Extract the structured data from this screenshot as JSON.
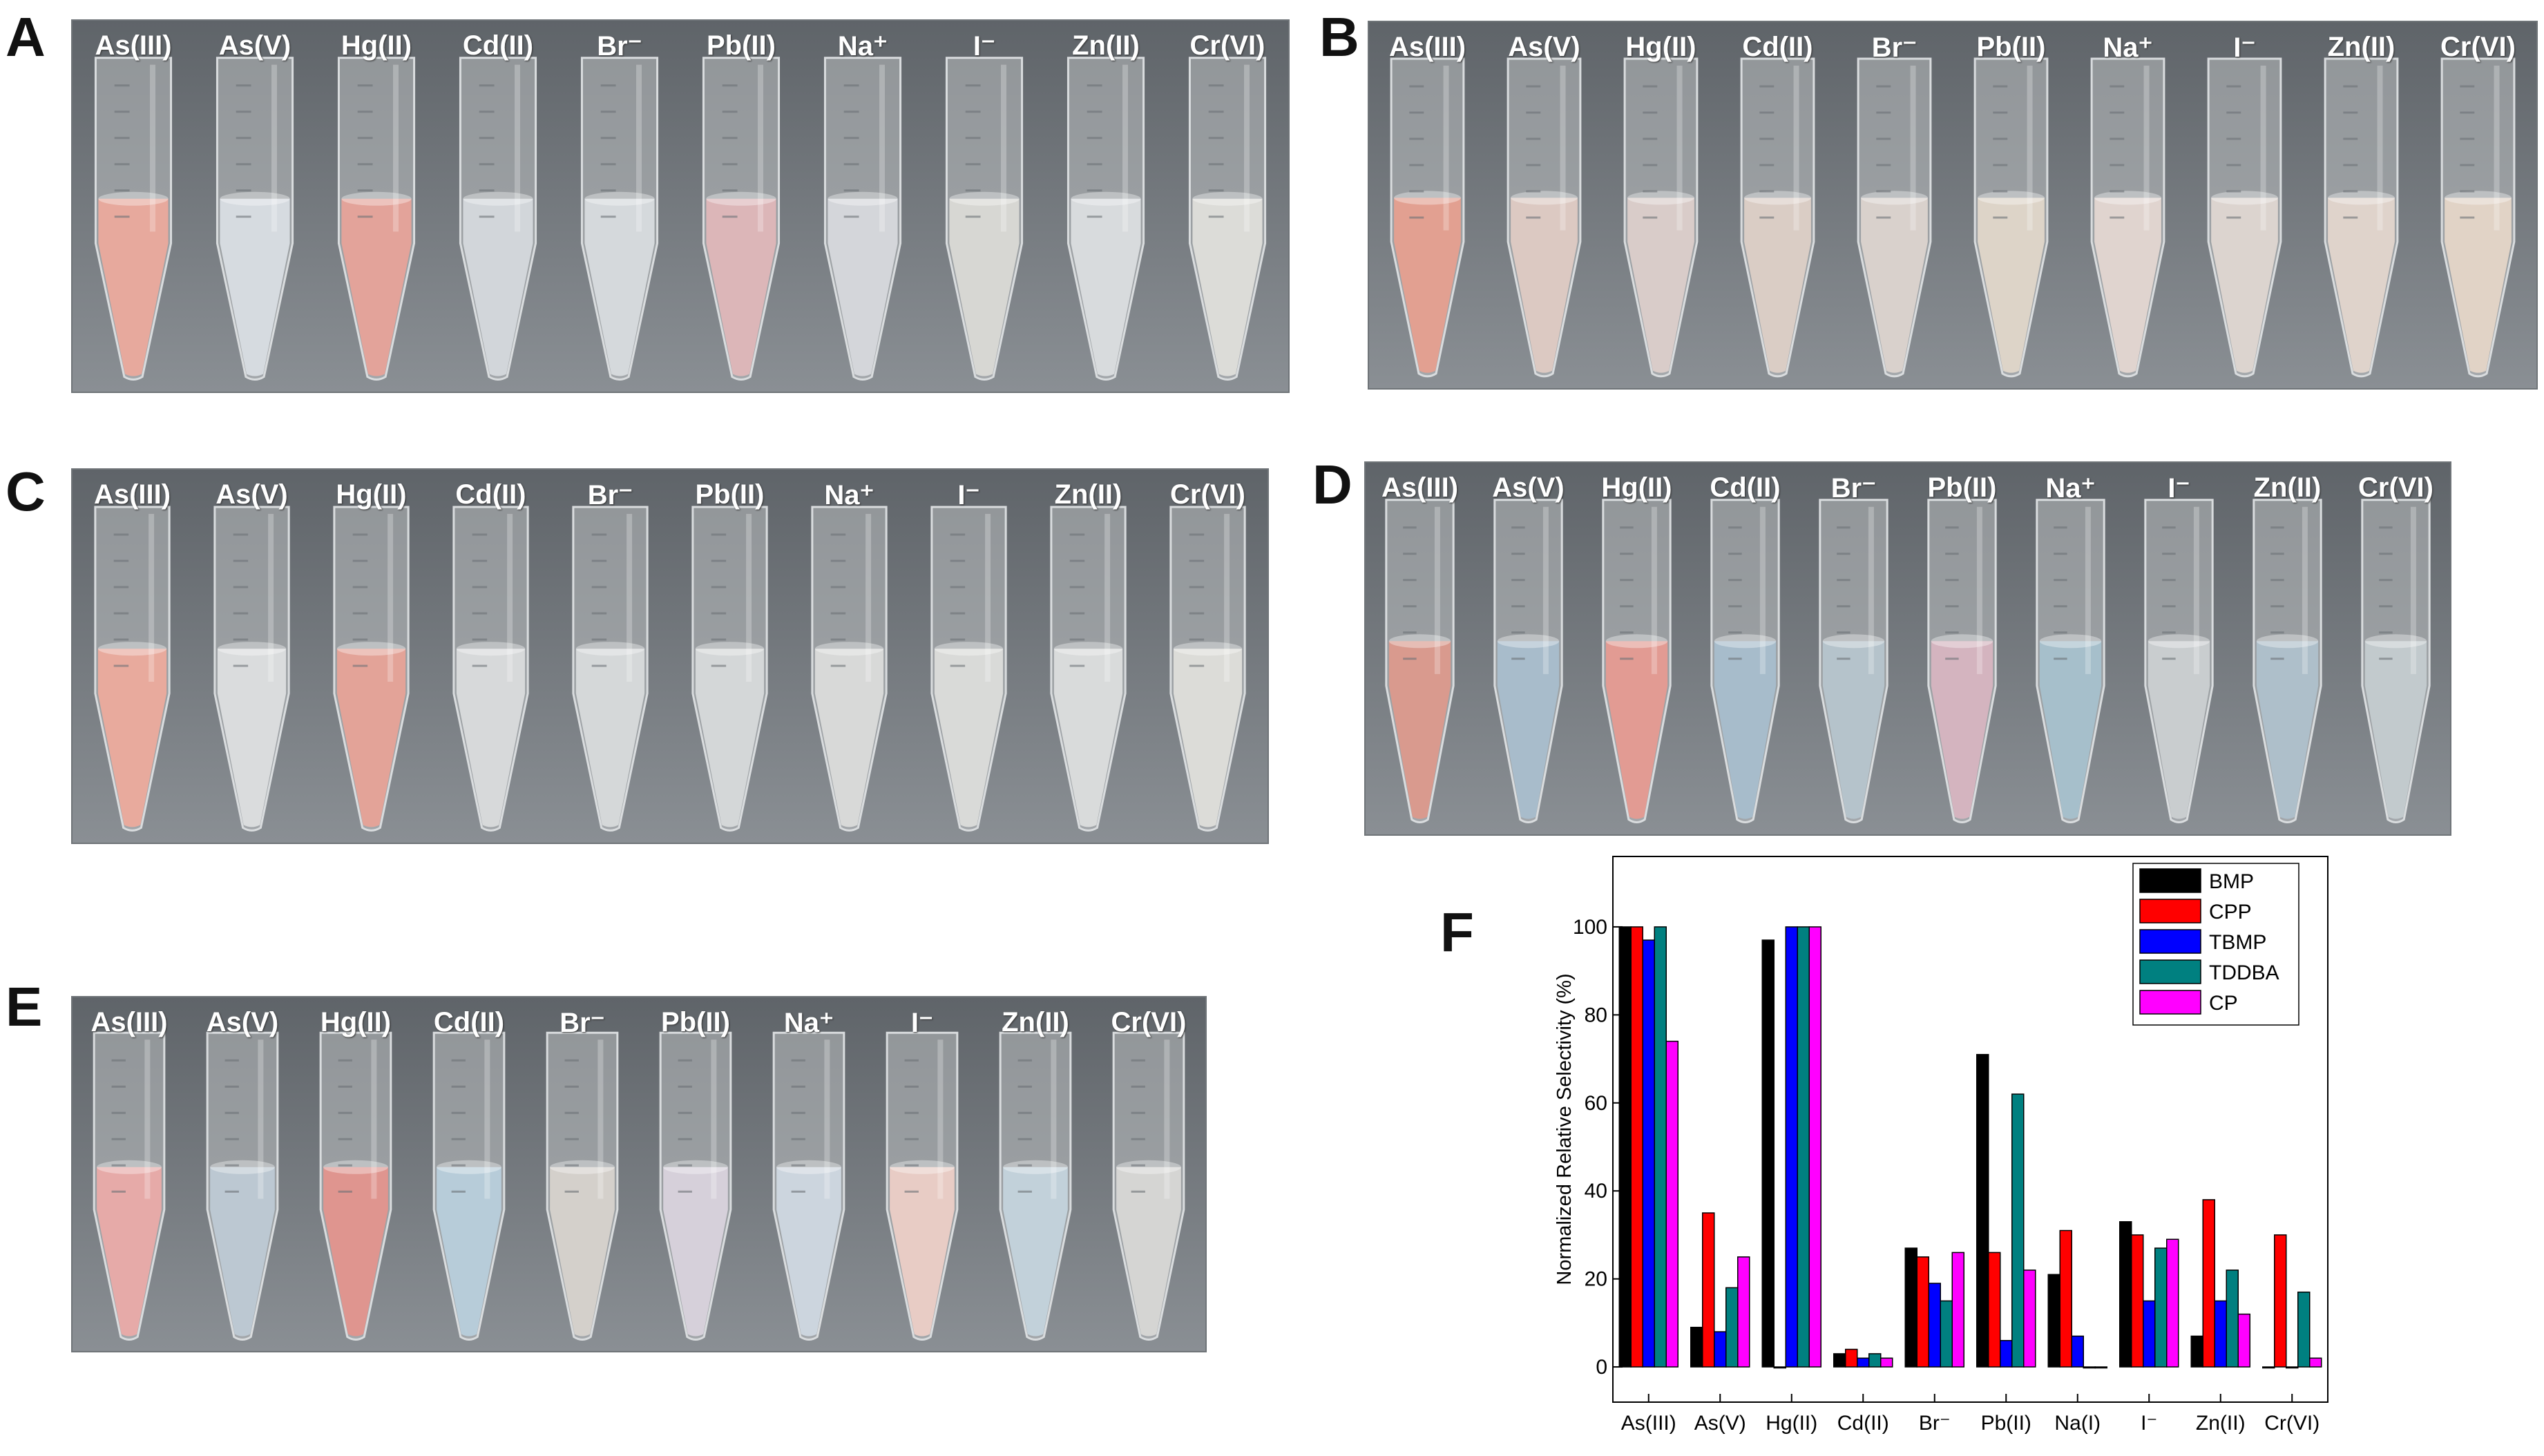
{
  "panels": [
    {
      "letter": "A",
      "labels": [
        "As(III)",
        "As(V)",
        "Hg(II)",
        "Cd(II)",
        "Br⁻",
        "Pb(II)",
        "Na⁺",
        "I⁻",
        "Zn(II)",
        "Cr(VI)"
      ],
      "liquid_colors": [
        "#e7a99d",
        "#d6dbe0",
        "#e3a39a",
        "#d2d6da",
        "#d5d9dc",
        "#dcb6b8",
        "#d4d6da",
        "#d7d7d3",
        "#d8dbdd",
        "#dcdcd8"
      ]
    },
    {
      "letter": "B",
      "labels": [
        "As(III)",
        "As(V)",
        "Hg(II)",
        "Cd(II)",
        "Br⁻",
        "Pb(II)",
        "Na⁺",
        "I⁻",
        "Zn(II)",
        "Cr(VI)"
      ],
      "liquid_colors": [
        "#e2a091",
        "#dcc9c2",
        "#d9ccc9",
        "#dacdc5",
        "#d9d1cc",
        "#ddd4c8",
        "#e0d4cf",
        "#dcd4cf",
        "#dfd3cb",
        "#e1d3c6"
      ]
    },
    {
      "letter": "C",
      "labels": [
        "As(III)",
        "As(V)",
        "Hg(II)",
        "Cd(II)",
        "Br⁻",
        "Pb(II)",
        "Na⁺",
        "I⁻",
        "Zn(II)",
        "Cr(VI)"
      ],
      "liquid_colors": [
        "#e8aa9d",
        "#dadcdd",
        "#e3a398",
        "#d7d9da",
        "#d5d8d9",
        "#d4d7d8",
        "#d8d9d8",
        "#d9dad8",
        "#d9dbdb",
        "#dcdcd8"
      ]
    },
    {
      "letter": "D",
      "labels": [
        "As(III)",
        "As(V)",
        "Hg(II)",
        "Cd(II)",
        "Br⁻",
        "Pb(II)",
        "Na⁺",
        "I⁻",
        "Zn(II)",
        "Cr(VI)"
      ],
      "liquid_colors": [
        "#d99a8e",
        "#a8bccb",
        "#e29b93",
        "#a7bccb",
        "#b5c3cb",
        "#d4b4bf",
        "#a6bfcb",
        "#c9cdcf",
        "#aebfca",
        "#c2cacd"
      ]
    },
    {
      "letter": "E",
      "labels": [
        "As(III)",
        "As(V)",
        "Hg(II)",
        "Cd(II)",
        "Br⁻",
        "Pb(II)",
        "Na⁺",
        "I⁻",
        "Zn(II)",
        "Cr(VI)"
      ],
      "liquid_colors": [
        "#e6aaa8",
        "#bcc8d2",
        "#df958f",
        "#b7ccd9",
        "#d4d0cb",
        "#d6d0da",
        "#ccd5de",
        "#e8ccc5",
        "#c2d1da",
        "#d5d5d3"
      ]
    }
  ],
  "colors": {
    "tube_wall": "#b9bdc0",
    "tube_cap": "#9fa4a8",
    "photo_bg_top": "#5f6469",
    "photo_bg_bottom": "#8a8f94"
  },
  "chart_panel_letter": "F",
  "chart_data": {
    "type": "bar",
    "categories": [
      "As(III)",
      "As(V)",
      "Hg(II)",
      "Cd(II)",
      "Br⁻",
      "Pb(II)",
      "Na(I)",
      "I⁻",
      "Zn(II)",
      "Cr(VI)"
    ],
    "series": [
      {
        "name": "BMP",
        "color": "#000000",
        "values": [
          100,
          9,
          97,
          3,
          27,
          71,
          21,
          33,
          7,
          0
        ]
      },
      {
        "name": "CPP",
        "color": "#ff0000",
        "values": [
          100,
          35,
          0,
          4,
          25,
          26,
          31,
          30,
          38,
          30
        ]
      },
      {
        "name": "TBMP",
        "color": "#0000ff",
        "values": [
          97,
          8,
          100,
          2,
          19,
          6,
          7,
          15,
          15,
          0
        ]
      },
      {
        "name": "TDDBA",
        "color": "#008080",
        "values": [
          100,
          18,
          100,
          3,
          15,
          62,
          0,
          27,
          22,
          17
        ]
      },
      {
        "name": "CP",
        "color": "#ff00ff",
        "values": [
          74,
          25,
          100,
          2,
          26,
          22,
          0,
          29,
          12,
          2
        ]
      }
    ],
    "ylabel": "Normalized Relative Selectivity (%)",
    "xlabel": "",
    "ylim": [
      -8,
      116
    ],
    "yticks": [
      0,
      20,
      40,
      60,
      80,
      100
    ],
    "legend_placement": "top-right"
  }
}
